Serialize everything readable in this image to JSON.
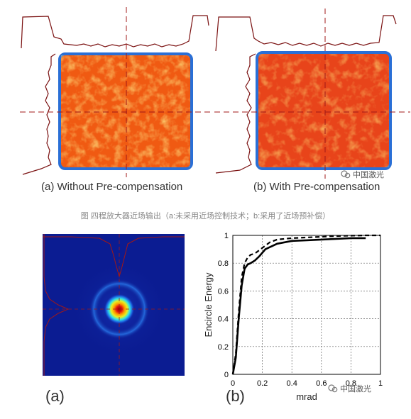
{
  "panels_top": {
    "a_caption": "(a) Without Pre-compensation",
    "b_caption": "(b) With Pre-compensation"
  },
  "figure_caption": "图  四程放大器近场输出（a:未采用近场控制技术；b:采用了近场预补偿）",
  "watermark_text": "中国激光",
  "bottom": {
    "a_label": "(a)",
    "b_label": "(b)"
  },
  "colors": {
    "profile_line": "#7a1010",
    "dash_line": "#a01818",
    "beam_edge": "#2a6fd6",
    "beam_hot": "#f04a10",
    "beam_warm": "#ffc640",
    "farfield_bg": "#0b1c92"
  },
  "chart_data": {
    "type": "line",
    "xlabel": "mrad",
    "ylabel": "Encircle Energy",
    "xlim": [
      0,
      1
    ],
    "ylim": [
      0,
      1
    ],
    "xticks": [
      "0",
      "0.2",
      "0.4",
      "0.6",
      "0.8",
      "1"
    ],
    "yticks": [
      "0",
      "0.2",
      "0.4",
      "0.6",
      "0.8",
      "1"
    ],
    "grid": true,
    "series": [
      {
        "style": "solid",
        "x": [
          0,
          0.02,
          0.04,
          0.06,
          0.08,
          0.1,
          0.12,
          0.15,
          0.18,
          0.22,
          0.3,
          0.4,
          0.5,
          0.6,
          0.7,
          0.8,
          0.9
        ],
        "y": [
          0,
          0.12,
          0.4,
          0.64,
          0.76,
          0.79,
          0.8,
          0.82,
          0.85,
          0.9,
          0.94,
          0.96,
          0.965,
          0.97,
          0.975,
          0.98,
          0.98
        ]
      },
      {
        "style": "dashed",
        "x": [
          0,
          0.02,
          0.04,
          0.06,
          0.08,
          0.1,
          0.12,
          0.15,
          0.2,
          0.25,
          0.3,
          0.4,
          0.5,
          0.6,
          0.7,
          0.8,
          0.9,
          1.0
        ],
        "y": [
          0,
          0.15,
          0.45,
          0.7,
          0.8,
          0.84,
          0.86,
          0.87,
          0.91,
          0.95,
          0.97,
          0.98,
          0.985,
          0.99,
          0.995,
          0.998,
          1.0,
          1.0
        ]
      }
    ]
  }
}
